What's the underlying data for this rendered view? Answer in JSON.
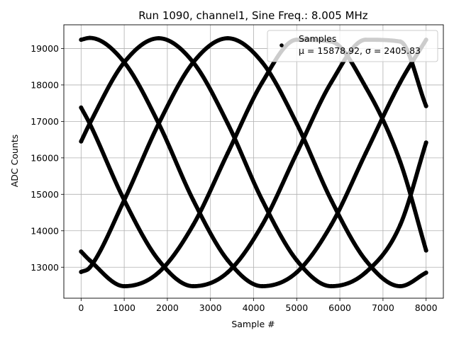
{
  "chart_data": {
    "type": "scatter",
    "title": "Run 1090, channel1, Sine Freq.: 8.005 MHz",
    "xlabel": "Sample #",
    "ylabel": "ADC Counts",
    "xlim": [
      -400,
      8400
    ],
    "ylim": [
      12150,
      19650
    ],
    "xticks": [
      0,
      1000,
      2000,
      3000,
      4000,
      5000,
      6000,
      7000,
      8000
    ],
    "xtick_labels": [
      "0",
      "1000",
      "2000",
      "3000",
      "4000",
      "5000",
      "6000",
      "7000",
      "8000"
    ],
    "yticks": [
      13000,
      14000,
      15000,
      16000,
      17000,
      18000,
      19000
    ],
    "ytick_labels": [
      "13000",
      "14000",
      "15000",
      "16000",
      "17000",
      "18000",
      "19000"
    ],
    "grid": true,
    "legend": {
      "placement": "upper right",
      "entries": [
        "Samples",
        "μ = 15878.92, σ = 2405.83"
      ]
    },
    "series": [
      {
        "name": "Samples",
        "color": "#000000",
        "x": [
          0,
          200,
          1000,
          1800,
          2600,
          3400,
          4200,
          5000,
          5800,
          6600,
          7400,
          8000
        ],
        "y": [
          19240,
          19290,
          18620,
          16940,
          14840,
          13190,
          12480,
          12860,
          14160,
          16130,
          18070,
          19240
        ]
      },
      {
        "name": "Samples",
        "color": "#000000",
        "x": [
          0,
          200,
          1000,
          1800,
          2600,
          3400,
          4200,
          5000,
          5800,
          6600,
          7400,
          8000
        ],
        "y": [
          17380,
          16940,
          14840,
          13190,
          12480,
          12860,
          14160,
          16130,
          18070,
          19240,
          19190,
          17420
        ]
      },
      {
        "name": "Samples",
        "color": "#000000",
        "x": [
          0,
          200,
          1000,
          1800,
          2600,
          3400,
          4200,
          5000,
          5800,
          6600,
          7400,
          8000
        ],
        "y": [
          16450,
          16940,
          18620,
          19280,
          18620,
          16940,
          14840,
          13190,
          12480,
          12860,
          14160,
          16420
        ]
      },
      {
        "name": "Samples",
        "color": "#000000",
        "x": [
          0,
          200,
          1000,
          1800,
          2600,
          3400,
          4200,
          5000,
          5800,
          6600,
          7400,
          8000
        ],
        "y": [
          13430,
          13190,
          12480,
          12860,
          14160,
          16130,
          18070,
          19240,
          19190,
          17940,
          15890,
          13460
        ]
      },
      {
        "name": "Samples",
        "color": "#000000",
        "x": [
          0,
          200,
          1000,
          1800,
          2600,
          3400,
          4200,
          5000,
          5800,
          6600,
          7400,
          8000
        ],
        "y": [
          12870,
          12990,
          14840,
          16940,
          18620,
          19280,
          18620,
          16940,
          14840,
          13190,
          12480,
          12850
        ]
      }
    ]
  }
}
